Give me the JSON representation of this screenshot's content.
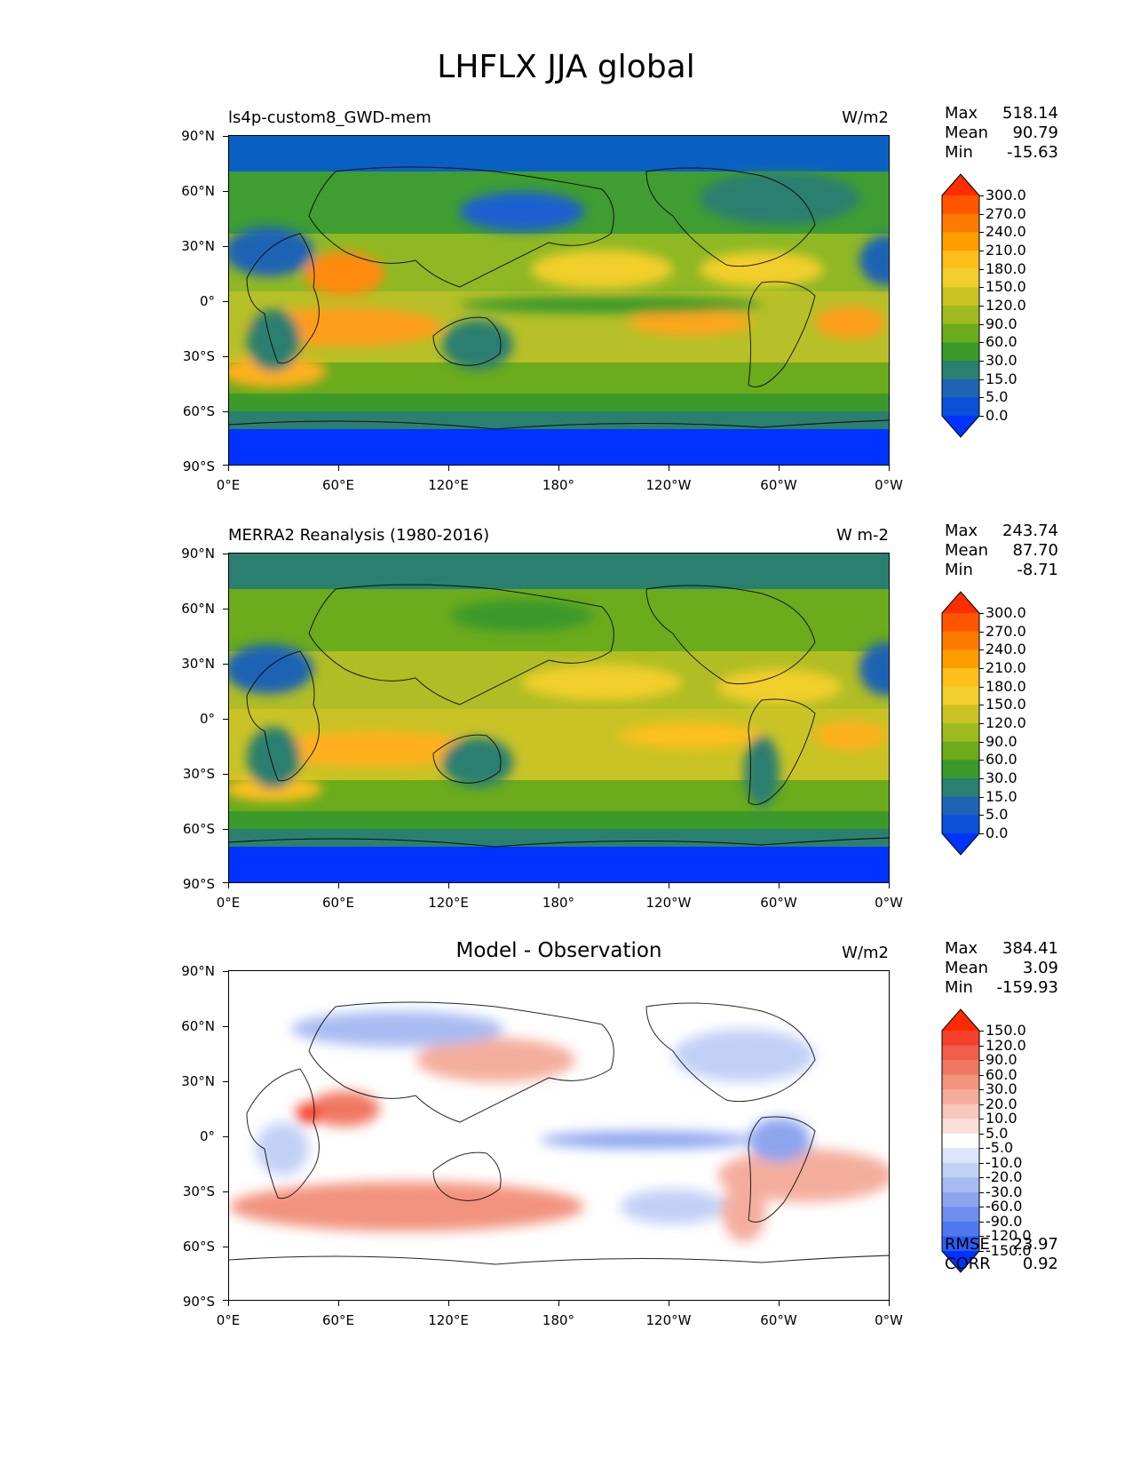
{
  "figure_title": "LHFLX JJA global",
  "axes": {
    "lat_labels": [
      "90°N",
      "60°N",
      "30°N",
      "0°",
      "30°S",
      "60°S",
      "90°S"
    ],
    "lon_labels": [
      "0°E",
      "60°E",
      "120°E",
      "180°",
      "120°W",
      "60°W",
      "0°W"
    ]
  },
  "panels": [
    {
      "title": "ls4p-custom8_GWD-mem",
      "units": "W/m2",
      "stats": [
        {
          "label": "Max",
          "value": "518.14"
        },
        {
          "label": "Mean",
          "value": "90.79"
        },
        {
          "label": "Min",
          "value": "-15.63"
        }
      ],
      "colorbar": {
        "labels": [
          "300.0",
          "270.0",
          "240.0",
          "210.0",
          "180.0",
          "150.0",
          "120.0",
          "90.0",
          "60.0",
          "30.0",
          "15.0",
          "5.0",
          "0.0"
        ],
        "colors": [
          "#ff2d00",
          "#ff5500",
          "#ff7a00",
          "#ff9d00",
          "#ffbf1a",
          "#f2cf2a",
          "#c9c326",
          "#9fba1e",
          "#6bab1c",
          "#3b9a2a",
          "#2b7f70",
          "#1f64b4",
          "#0a51d8",
          "#0033ff"
        ]
      },
      "footer": []
    },
    {
      "title": "MERRA2 Reanalysis (1980-2016)",
      "units": "W m-2",
      "stats": [
        {
          "label": "Max",
          "value": "243.74"
        },
        {
          "label": "Mean",
          "value": "87.70"
        },
        {
          "label": "Min",
          "value": "-8.71"
        }
      ],
      "colorbar": {
        "labels": [
          "300.0",
          "270.0",
          "240.0",
          "210.0",
          "180.0",
          "150.0",
          "120.0",
          "90.0",
          "60.0",
          "30.0",
          "15.0",
          "5.0",
          "0.0"
        ],
        "colors": [
          "#ff2d00",
          "#ff5500",
          "#ff7a00",
          "#ff9d00",
          "#ffbf1a",
          "#f2cf2a",
          "#c9c326",
          "#9fba1e",
          "#6bab1c",
          "#3b9a2a",
          "#2b7f70",
          "#1f64b4",
          "#0a51d8",
          "#0033ff"
        ]
      },
      "footer": []
    },
    {
      "title": "Model - Observation",
      "units": "W/m2",
      "stats": [
        {
          "label": "Max",
          "value": "384.41"
        },
        {
          "label": "Mean",
          "value": "3.09"
        },
        {
          "label": "Min",
          "value": "-159.93"
        }
      ],
      "colorbar": {
        "labels": [
          "150.0",
          "120.0",
          "90.0",
          "60.0",
          "30.0",
          "20.0",
          "10.0",
          "5.0",
          "-5.0",
          "-10.0",
          "-20.0",
          "-30.0",
          "-60.0",
          "-90.0",
          "-120.0",
          "-150.0"
        ],
        "colors": [
          "#ff2a00",
          "#f4412a",
          "#f25c4a",
          "#f07862",
          "#f2937e",
          "#f4ad9c",
          "#f7c7bb",
          "#fae0d9",
          "#ffffff",
          "#dde5fb",
          "#c3d0f6",
          "#a8bbf2",
          "#8ca5ef",
          "#6d8eee",
          "#4f77f0",
          "#2c5df5",
          "#0033ff"
        ]
      },
      "footer": [
        {
          "label": "RMSE",
          "value": "23.97"
        },
        {
          "label": "CORR",
          "value": "0.92"
        }
      ]
    }
  ]
}
